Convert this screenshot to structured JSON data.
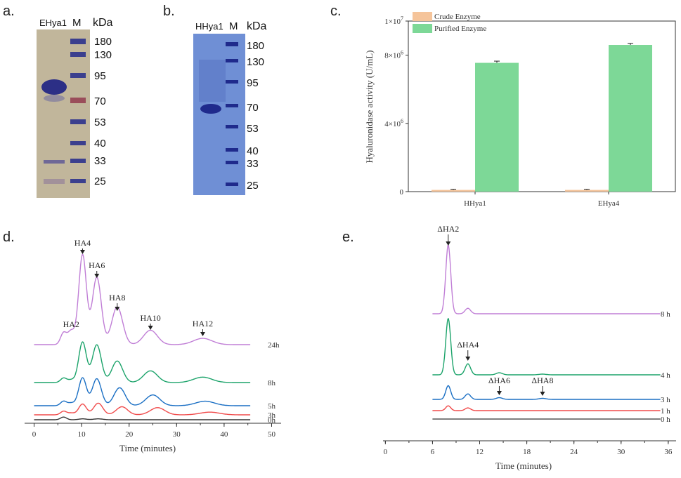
{
  "panels": {
    "a": "a.",
    "b": "b.",
    "c": "c.",
    "d": "d.",
    "e": "e."
  },
  "gel_a": {
    "sample_label": "EHya1",
    "marker_label": "M",
    "unit": "kDa",
    "markers": [
      "180",
      "130",
      "95",
      "70",
      "53",
      "40",
      "33",
      "25"
    ],
    "background_color": "#c9bea6",
    "band_color": "#2c2f86"
  },
  "gel_b": {
    "sample_label": "HHya1",
    "marker_label": "M",
    "unit": "kDa",
    "markers": [
      "180",
      "130",
      "95",
      "70",
      "53",
      "40",
      "33",
      "25"
    ],
    "background_color": "#6f8ed3",
    "band_color": "#1f2a8c"
  },
  "chart_data": [
    {
      "id": "c",
      "type": "bar",
      "categories": [
        "HHya1",
        "EHya4"
      ],
      "series": [
        {
          "name": "Crude Enzyme",
          "values": [
            100000,
            100000
          ],
          "color": "#f5c49a"
        },
        {
          "name": "Purified Enzyme",
          "values": [
            7550000,
            8600000
          ],
          "errors": [
            60000,
            50000
          ],
          "color": "#7dd897"
        }
      ],
      "ylabel": "Hyaluronidase activity (U/mL)",
      "ylim": [
        0,
        10000000
      ],
      "yticks": [
        0,
        4000000,
        8000000,
        10000000
      ],
      "ytick_labels": [
        {
          "main": "0",
          "exp": ""
        },
        {
          "main": "4×10",
          "exp": "6"
        },
        {
          "main": "8×10",
          "exp": "6"
        },
        {
          "main": "1×10",
          "exp": "7"
        }
      ],
      "legend": "top-left"
    },
    {
      "id": "d",
      "type": "line",
      "xlabel": "Time (minutes)",
      "xlim": [
        -2,
        52
      ],
      "xticks": [
        0,
        10,
        20,
        30,
        40,
        50
      ],
      "series": [
        {
          "name": "24h",
          "color": "#c07ed6",
          "peaks": [
            [
              6.2,
              0.13
            ],
            [
              7.8,
              0.15
            ],
            [
              10.2,
              1.0
            ],
            [
              13.2,
              0.75
            ],
            [
              17.5,
              0.42
            ],
            [
              24.5,
              0.16
            ],
            [
              35.5,
              0.07
            ]
          ]
        },
        {
          "name": "8h",
          "color": "#1ba36a",
          "peaks": [
            [
              6.2,
              0.05
            ],
            [
              7.8,
              0.03
            ],
            [
              10.2,
              0.45
            ],
            [
              13.2,
              0.42
            ],
            [
              17.5,
              0.24
            ],
            [
              24.5,
              0.13
            ],
            [
              35.5,
              0.06
            ]
          ]
        },
        {
          "name": "5h",
          "color": "#1a6fc4",
          "peaks": [
            [
              6.2,
              0.05
            ],
            [
              7.8,
              0.03
            ],
            [
              10.2,
              0.31
            ],
            [
              13.2,
              0.3
            ],
            [
              18.0,
              0.2
            ],
            [
              25.0,
              0.12
            ],
            [
              36.0,
              0.05
            ]
          ]
        },
        {
          "name": "3h",
          "color": "#f04a4a",
          "peaks": [
            [
              6.2,
              0.04
            ],
            [
              7.8,
              0.02
            ],
            [
              10.2,
              0.12
            ],
            [
              13.5,
              0.13
            ],
            [
              18.5,
              0.09
            ],
            [
              26.0,
              0.08
            ],
            [
              37.0,
              0.03
            ]
          ]
        },
        {
          "name": "0h",
          "color": "#333333",
          "peaks": [
            [
              6.2,
              0.03
            ],
            [
              10.2,
              0.01
            ],
            [
              13.5,
              0.01
            ]
          ]
        }
      ],
      "annotations": [
        {
          "label": "HA2",
          "x": 7.8,
          "arrow": false
        },
        {
          "label": "HA4",
          "x": 10.2,
          "arrow": true
        },
        {
          "label": "HA6",
          "x": 13.2,
          "arrow": true
        },
        {
          "label": "HA8",
          "x": 17.5,
          "arrow": true
        },
        {
          "label": "HA10",
          "x": 24.5,
          "arrow": true
        },
        {
          "label": "HA12",
          "x": 35.5,
          "arrow": true
        }
      ]
    },
    {
      "id": "e",
      "type": "line",
      "xlabel": "Time (minutes)",
      "xlim": [
        -0.3,
        37
      ],
      "xticks": [
        0,
        6,
        12,
        18,
        24,
        30,
        36
      ],
      "series": [
        {
          "name": "8 h",
          "color": "#c07ed6",
          "peaks": [
            [
              8.0,
              1.0
            ],
            [
              10.5,
              0.08
            ]
          ]
        },
        {
          "name": "4 h",
          "color": "#1ba36a",
          "peaks": [
            [
              8.0,
              0.82
            ],
            [
              10.5,
              0.16
            ],
            [
              14.5,
              0.03
            ],
            [
              20.0,
              0.01
            ]
          ]
        },
        {
          "name": "3 h",
          "color": "#1a6fc4",
          "peaks": [
            [
              8.0,
              0.2
            ],
            [
              10.5,
              0.08
            ],
            [
              14.5,
              0.025
            ],
            [
              20.0,
              0.015
            ]
          ]
        },
        {
          "name": "1 h",
          "color": "#f04a4a",
          "peaks": [
            [
              8.0,
              0.07
            ],
            [
              10.5,
              0.04
            ]
          ]
        },
        {
          "name": "0 h",
          "color": "#555555",
          "peaks": []
        }
      ],
      "annotations": [
        {
          "label": "ΔHA2",
          "x": 8.0
        },
        {
          "label": "ΔHA4",
          "x": 10.5
        },
        {
          "label": "ΔHA6",
          "x": 14.5
        },
        {
          "label": "ΔHA8",
          "x": 20.0
        }
      ]
    }
  ]
}
